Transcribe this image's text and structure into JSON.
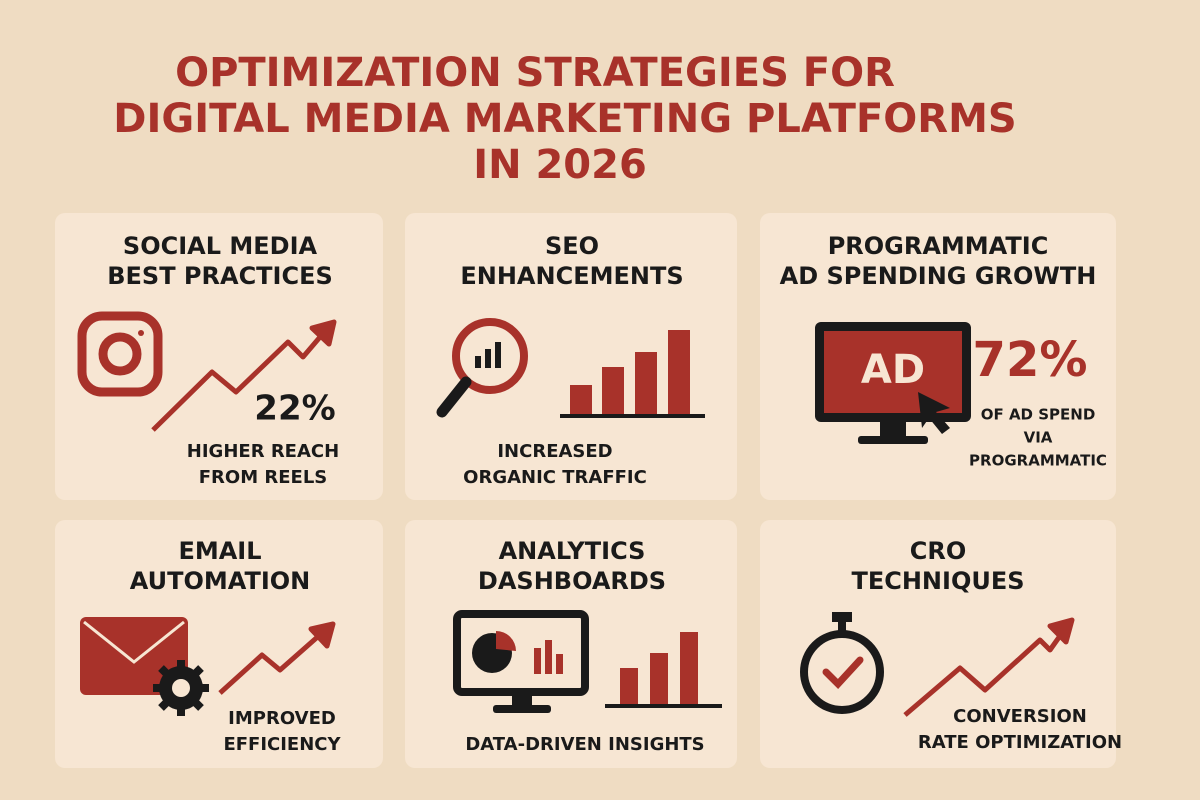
{
  "header": {
    "title": [
      "OPTIMIZATION STRATEGIES FOR",
      "DIGITAL MEDIA MARKETING PLATFORMS",
      "IN 2026"
    ]
  },
  "cards": [
    {
      "title": [
        "SOCIAL MEDIA",
        "BEST PRACTICES"
      ],
      "stat": "22%",
      "caption": [
        "HIGHER REACH",
        "FROM REELS"
      ]
    },
    {
      "title": [
        "SEO",
        "ENHANCEMENTS"
      ],
      "caption": [
        "INCREASED",
        "ORGANIC TRAFFIC"
      ]
    },
    {
      "title": [
        "PROGRAMMATIC",
        "AD SPENDING GROWTH"
      ],
      "icon_label": "AD",
      "stat": "72%",
      "caption": [
        "OF AD SPEND",
        "VIA",
        "PROGRAMMATIC"
      ]
    },
    {
      "title": [
        "EMAIL",
        "AUTOMATION"
      ],
      "caption": [
        "IMPROVED",
        "EFFICIENCY"
      ]
    },
    {
      "title": [
        "ANALYTICS",
        "DASHBOARDS"
      ],
      "caption": [
        "DATA-DRIVEN INSIGHTS"
      ]
    },
    {
      "title": [
        "CRO",
        "TECHNIQUES"
      ],
      "caption": [
        "CONVERSION",
        "RATE OPTIMIZATION"
      ]
    }
  ]
}
